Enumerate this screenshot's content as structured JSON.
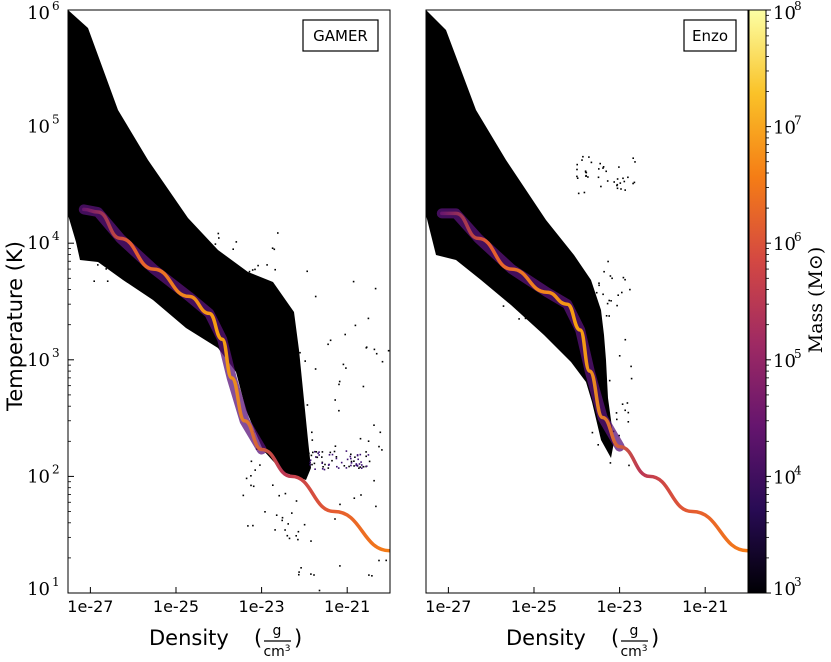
{
  "chart_data": {
    "type": "heatmap",
    "title": "",
    "xlabel": "Density",
    "xlabel_unit_num": "g",
    "xlabel_unit_den": "cm3",
    "ylabel": "Temperature  (K)",
    "colorbar_label": "Mass (M⊙)",
    "x_scale": "log",
    "y_scale": "log",
    "xlim": [
      3e-28,
      1e-20
    ],
    "ylim": [
      10,
      1000000
    ],
    "colorbar_range": [
      1000,
      100000000
    ],
    "x_ticks": [
      "1e-27",
      "1e-25",
      "1e-23",
      "1e-21"
    ],
    "y_ticks": [
      {
        "base": "10",
        "exp": "1"
      },
      {
        "base": "10",
        "exp": "2"
      },
      {
        "base": "10",
        "exp": "3"
      },
      {
        "base": "10",
        "exp": "4"
      },
      {
        "base": "10",
        "exp": "5"
      },
      {
        "base": "10",
        "exp": "6"
      }
    ],
    "colorbar_ticks": [
      {
        "base": "10",
        "exp": "3"
      },
      {
        "base": "10",
        "exp": "4"
      },
      {
        "base": "10",
        "exp": "5"
      },
      {
        "base": "10",
        "exp": "6"
      },
      {
        "base": "10",
        "exp": "7"
      },
      {
        "base": "10",
        "exp": "8"
      }
    ],
    "colormap": [
      "#000004",
      "#280b54",
      "#65156e",
      "#9f2a63",
      "#d44842",
      "#f57d15",
      "#fac228",
      "#fcffa4"
    ],
    "panels": [
      {
        "name": "GAMER",
        "label": "GAMER",
        "ridge": [
          {
            "x": 7e-28,
            "y": 19500
          },
          {
            "x": 1.5e-27,
            "y": 18500
          },
          {
            "x": 5e-27,
            "y": 11000
          },
          {
            "x": 3e-26,
            "y": 6000
          },
          {
            "x": 2e-25,
            "y": 3500
          },
          {
            "x": 6e-25,
            "y": 2500
          },
          {
            "x": 1.2e-24,
            "y": 1500
          },
          {
            "x": 2e-24,
            "y": 700
          },
          {
            "x": 4e-24,
            "y": 300
          },
          {
            "x": 1e-23,
            "y": 170
          },
          {
            "x": 5e-23,
            "y": 100
          },
          {
            "x": 5e-22,
            "y": 50
          },
          {
            "x": 1e-20,
            "y": 23
          }
        ]
      },
      {
        "name": "Enzo",
        "label": "Enzo",
        "ridge": [
          {
            "x": 7e-28,
            "y": 18000
          },
          {
            "x": 1.5e-27,
            "y": 18000
          },
          {
            "x": 5e-27,
            "y": 11000
          },
          {
            "x": 3e-26,
            "y": 6000
          },
          {
            "x": 2e-25,
            "y": 3800
          },
          {
            "x": 6e-25,
            "y": 3000
          },
          {
            "x": 1.2e-24,
            "y": 1800
          },
          {
            "x": 2e-24,
            "y": 800
          },
          {
            "x": 4e-24,
            "y": 320
          },
          {
            "x": 1e-23,
            "y": 180
          },
          {
            "x": 5e-23,
            "y": 100
          },
          {
            "x": 5e-22,
            "y": 50
          },
          {
            "x": 1e-20,
            "y": 23
          }
        ]
      }
    ]
  }
}
